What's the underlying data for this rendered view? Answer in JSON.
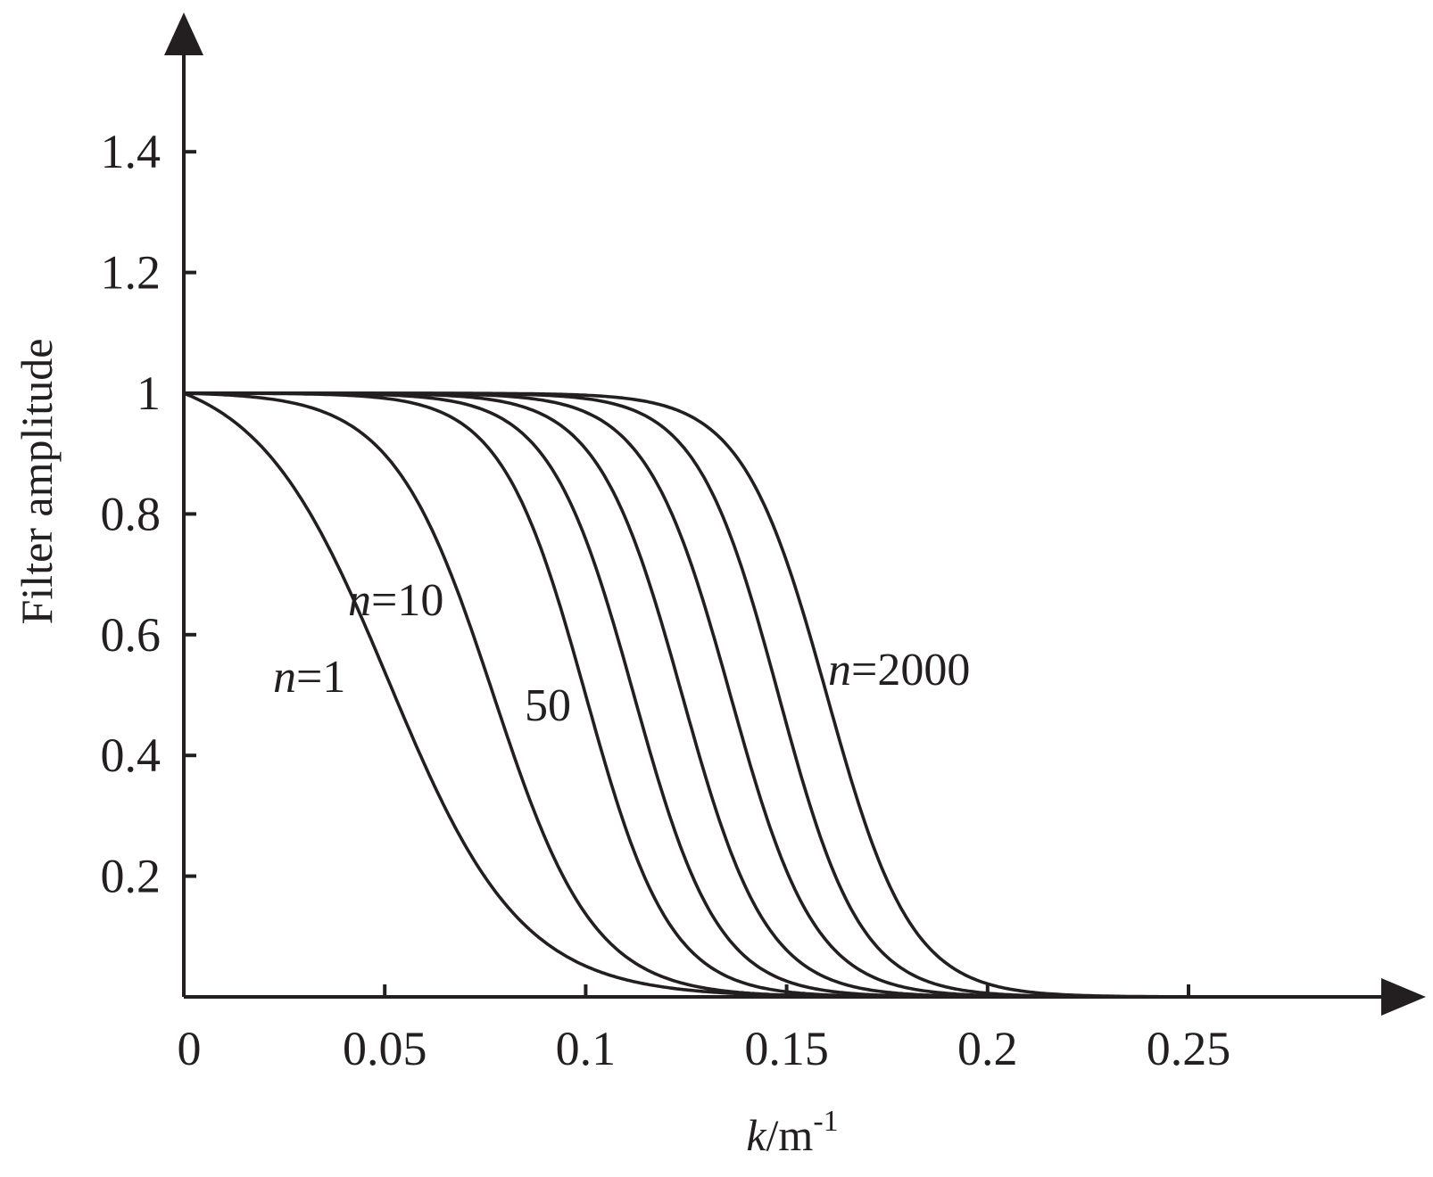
{
  "chart_data": {
    "type": "line",
    "xlabel": {
      "var": "k",
      "unit": "/m",
      "sup": "-1"
    },
    "ylabel": "Filter amplitude",
    "xlim": [
      0,
      0.3
    ],
    "ylim": [
      0,
      1.6
    ],
    "xticks": [
      {
        "value": 0,
        "label": "0"
      },
      {
        "value": 0.05,
        "label": "0.05"
      },
      {
        "value": 0.1,
        "label": "0.1"
      },
      {
        "value": 0.15,
        "label": "0.15"
      },
      {
        "value": 0.2,
        "label": "0.2"
      },
      {
        "value": 0.25,
        "label": "0.25"
      }
    ],
    "yticks": [
      {
        "value": 0.2,
        "label": "0.2"
      },
      {
        "value": 0.4,
        "label": "0.4"
      },
      {
        "value": 0.6,
        "label": "0.6"
      },
      {
        "value": 0.8,
        "label": "0.8"
      },
      {
        "value": 1,
        "label": "1"
      },
      {
        "value": 1.2,
        "label": "1.2"
      },
      {
        "value": 1.4,
        "label": "1.4"
      }
    ],
    "grid": false,
    "legend": "none",
    "line_color": "#231f20",
    "curve_k_half": [
      0.051,
      0.077,
      0.1,
      0.112,
      0.124,
      0.136,
      0.148,
      0.16
    ],
    "series": [
      {
        "x": [
          0,
          0.01,
          0.02,
          0.03,
          0.04,
          0.05,
          0.06,
          0.07,
          0.08,
          0.09,
          0.1,
          0.12,
          0.15,
          0.2,
          0.25
        ],
        "y": [
          1.0,
          0.98,
          0.93,
          0.82,
          0.66,
          0.48,
          0.3,
          0.16,
          0.08,
          0.04,
          0.02,
          0.006,
          0.002,
          0.0,
          0.0
        ]
      },
      {
        "x": [
          0,
          0.03,
          0.04,
          0.05,
          0.06,
          0.07,
          0.08,
          0.09,
          0.1,
          0.11,
          0.12,
          0.14,
          0.17,
          0.2,
          0.25
        ],
        "y": [
          1.0,
          1.0,
          0.99,
          0.96,
          0.88,
          0.74,
          0.5,
          0.3,
          0.16,
          0.08,
          0.04,
          0.012,
          0.003,
          0.0,
          0.0
        ]
      },
      {
        "x": [
          0,
          0.06,
          0.07,
          0.08,
          0.09,
          0.1,
          0.11,
          0.12,
          0.13,
          0.14,
          0.16,
          0.18,
          0.2,
          0.25
        ],
        "y": [
          1.0,
          1.0,
          0.99,
          0.94,
          0.82,
          0.6,
          0.38,
          0.2,
          0.1,
          0.05,
          0.015,
          0.005,
          0.002,
          0.0
        ]
      },
      {
        "x": [
          0,
          0.07,
          0.08,
          0.09,
          0.1,
          0.11,
          0.12,
          0.13,
          0.14,
          0.15,
          0.17,
          0.19,
          0.21,
          0.25
        ],
        "y": [
          1.0,
          1.0,
          0.99,
          0.95,
          0.84,
          0.64,
          0.4,
          0.22,
          0.11,
          0.05,
          0.015,
          0.005,
          0.002,
          0.0
        ]
      },
      {
        "x": [
          0,
          0.085,
          0.095,
          0.105,
          0.115,
          0.125,
          0.135,
          0.145,
          0.155,
          0.17,
          0.19,
          0.21,
          0.25
        ],
        "y": [
          1.0,
          1.0,
          0.98,
          0.91,
          0.74,
          0.5,
          0.28,
          0.14,
          0.06,
          0.02,
          0.006,
          0.002,
          0.0
        ]
      },
      {
        "x": [
          0,
          0.095,
          0.105,
          0.115,
          0.125,
          0.135,
          0.145,
          0.155,
          0.165,
          0.18,
          0.2,
          0.22,
          0.25
        ],
        "y": [
          1.0,
          1.0,
          0.98,
          0.91,
          0.74,
          0.5,
          0.28,
          0.14,
          0.06,
          0.02,
          0.006,
          0.002,
          0.0
        ]
      },
      {
        "x": [
          0,
          0.105,
          0.115,
          0.125,
          0.135,
          0.145,
          0.155,
          0.165,
          0.175,
          0.19,
          0.21,
          0.23,
          0.25
        ],
        "y": [
          1.0,
          1.0,
          0.99,
          0.94,
          0.8,
          0.55,
          0.3,
          0.14,
          0.06,
          0.02,
          0.006,
          0.002,
          0.0
        ]
      },
      {
        "x": [
          0,
          0.12,
          0.13,
          0.14,
          0.15,
          0.16,
          0.17,
          0.18,
          0.19,
          0.2,
          0.22,
          0.24,
          0.25
        ],
        "y": [
          1.0,
          1.0,
          0.99,
          0.94,
          0.78,
          0.52,
          0.3,
          0.15,
          0.07,
          0.03,
          0.008,
          0.002,
          0.0
        ]
      }
    ],
    "annotations": [
      {
        "italic": "n",
        "text": "=1",
        "series": 0
      },
      {
        "italic": "n",
        "text": "=10",
        "series": 1
      },
      {
        "italic": "",
        "text": "50",
        "series": 2
      },
      {
        "italic": "n",
        "text": "=2000",
        "series": 7
      }
    ]
  }
}
